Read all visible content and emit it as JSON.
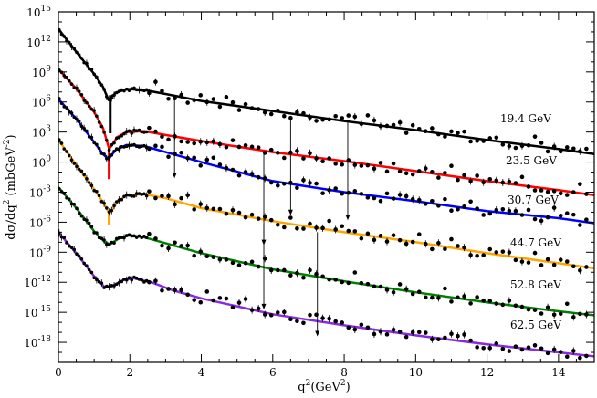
{
  "chart_data": {
    "type": "line",
    "title": "",
    "xlabel_base": "q",
    "xlabel_sup": "2",
    "xlabel_unit_pre": "(GeV",
    "xlabel_unit_sup": "2",
    "xlabel_unit_post": ")",
    "ylabel_main": "dσ/dq",
    "ylabel_sup1": "2",
    "ylabel_unit_pre": " (mbGeV",
    "ylabel_unit_sup": "-2",
    "ylabel_unit_post": ")",
    "xlim": [
      0,
      15
    ],
    "ylim_log10": [
      -20,
      15
    ],
    "x_ticks": [
      0,
      2,
      4,
      6,
      8,
      10,
      12,
      14
    ],
    "y_ticks": [
      {
        "base": "10",
        "exp": "15",
        "value": 15
      },
      {
        "base": "10",
        "exp": "12",
        "value": 12
      },
      {
        "base": "10",
        "exp": "9",
        "value": 9
      },
      {
        "base": "10",
        "exp": "6",
        "value": 6
      },
      {
        "base": "10",
        "exp": "3",
        "value": 3
      },
      {
        "base": "10",
        "exp": "0",
        "value": 0
      },
      {
        "base": "10",
        "exp": "-3",
        "value": -3
      },
      {
        "base": "10",
        "exp": "-6",
        "value": -6
      },
      {
        "base": "10",
        "exp": "-9",
        "value": -9
      },
      {
        "base": "10",
        "exp": "-12",
        "value": -12
      },
      {
        "base": "10",
        "exp": "-15",
        "value": -15
      },
      {
        "base": "10",
        "exp": "-18",
        "value": -18
      }
    ],
    "series": [
      {
        "name": "19.4 GeV",
        "color": "#000000",
        "dip_x": 1.45,
        "dip_depth": 3.5,
        "curve": [
          [
            0,
            13.3
          ],
          [
            0.5,
            11.0
          ],
          [
            1.0,
            8.8
          ],
          [
            1.25,
            7.5
          ],
          [
            1.4,
            6.2
          ],
          [
            1.6,
            6.9
          ],
          [
            1.9,
            7.3
          ],
          [
            2.4,
            7.2
          ],
          [
            3.0,
            6.8
          ],
          [
            4.0,
            6.1
          ],
          [
            6.0,
            5.1
          ],
          [
            8.0,
            4.1
          ],
          [
            10.0,
            3.2
          ],
          [
            12.0,
            2.2
          ],
          [
            14.0,
            1.3
          ],
          [
            15.0,
            0.8
          ]
        ]
      },
      {
        "name": "23.5 GeV",
        "color": "#ff0000",
        "dip_x": 1.42,
        "dip_depth": 3.0,
        "curve": [
          [
            0,
            9.3
          ],
          [
            0.5,
            7.3
          ],
          [
            1.0,
            5.0
          ],
          [
            1.25,
            3.4
          ],
          [
            1.42,
            1.3
          ],
          [
            1.65,
            2.5
          ],
          [
            1.9,
            3.0
          ],
          [
            2.4,
            3.1
          ],
          [
            3.0,
            2.7
          ],
          [
            4.0,
            2.1
          ],
          [
            6.0,
            1.0
          ],
          [
            8.0,
            0.1
          ],
          [
            10.0,
            -0.9
          ],
          [
            12.0,
            -1.9
          ],
          [
            14.0,
            -2.8
          ],
          [
            15.0,
            -3.3
          ]
        ]
      },
      {
        "name": "30.7 GeV",
        "color": "#0000ff",
        "dip_x": 1.4,
        "dip_depth": 0,
        "curve": [
          [
            0,
            6.3
          ],
          [
            0.5,
            4.3
          ],
          [
            1.0,
            2.0
          ],
          [
            1.25,
            0.8
          ],
          [
            1.4,
            0.3
          ],
          [
            1.6,
            1.2
          ],
          [
            1.9,
            1.7
          ],
          [
            2.4,
            1.6
          ],
          [
            3.0,
            1.0
          ],
          [
            4.0,
            0.0
          ],
          [
            6.0,
            -1.9
          ],
          [
            8.0,
            -3.0
          ],
          [
            10.0,
            -3.9
          ],
          [
            12.0,
            -4.9
          ],
          [
            14.0,
            -5.6
          ],
          [
            15.0,
            -6.1
          ]
        ]
      },
      {
        "name": "44.7 GeV",
        "color": "#ffa500",
        "dip_x": 1.42,
        "dip_depth": 1.2,
        "curve": [
          [
            0,
            2.2
          ],
          [
            0.5,
            -0.3
          ],
          [
            1.0,
            -2.7
          ],
          [
            1.25,
            -4.0
          ],
          [
            1.42,
            -5.1
          ],
          [
            1.65,
            -4.0
          ],
          [
            1.9,
            -3.3
          ],
          [
            2.4,
            -3.2
          ],
          [
            3.0,
            -3.6
          ],
          [
            4.0,
            -4.6
          ],
          [
            6.0,
            -5.9
          ],
          [
            8.0,
            -7.0
          ],
          [
            10.0,
            -8.0
          ],
          [
            12.0,
            -9.1
          ],
          [
            14.0,
            -10.1
          ],
          [
            15.0,
            -10.6
          ]
        ]
      },
      {
        "name": "52.8 GeV",
        "color": "#008000",
        "dip_x": 1.4,
        "dip_depth": 0,
        "curve": [
          [
            0,
            -2.5
          ],
          [
            0.5,
            -4.6
          ],
          [
            1.0,
            -6.9
          ],
          [
            1.3,
            -8.0
          ],
          [
            1.45,
            -8.2
          ],
          [
            1.7,
            -7.6
          ],
          [
            2.0,
            -7.3
          ],
          [
            2.4,
            -7.5
          ],
          [
            3.0,
            -8.1
          ],
          [
            4.0,
            -9.1
          ],
          [
            6.0,
            -10.7
          ],
          [
            8.0,
            -11.9
          ],
          [
            10.0,
            -13.0
          ],
          [
            12.0,
            -14.0
          ],
          [
            14.0,
            -14.9
          ],
          [
            15.0,
            -15.3
          ]
        ]
      },
      {
        "name": "62.5 GeV",
        "color": "#8a2be2",
        "dip_x": 1.4,
        "dip_depth": 0,
        "curve": [
          [
            0,
            -7.0
          ],
          [
            0.5,
            -9.1
          ],
          [
            1.0,
            -11.4
          ],
          [
            1.3,
            -12.5
          ],
          [
            1.5,
            -12.4
          ],
          [
            1.8,
            -11.8
          ],
          [
            2.1,
            -11.6
          ],
          [
            2.6,
            -12.0
          ],
          [
            3.2,
            -12.8
          ],
          [
            4.0,
            -13.6
          ],
          [
            6.0,
            -15.2
          ],
          [
            8.0,
            -16.3
          ],
          [
            10.0,
            -17.3
          ],
          [
            12.0,
            -18.2
          ],
          [
            14.0,
            -19.0
          ],
          [
            15.0,
            -19.4
          ]
        ]
      }
    ],
    "arrows": [
      {
        "x": 3.25,
        "from": 6.2,
        "to": -1.6
      },
      {
        "x": 5.75,
        "from": 0.8,
        "to": -8.3
      },
      {
        "x": 5.75,
        "from": -6.2,
        "to": -14.7
      },
      {
        "x": 6.5,
        "from": 4.6,
        "to": -5.3
      },
      {
        "x": 7.25,
        "from": -7.0,
        "to": -17.4
      },
      {
        "x": 8.1,
        "from": 4.2,
        "to": -5.8
      }
    ]
  }
}
